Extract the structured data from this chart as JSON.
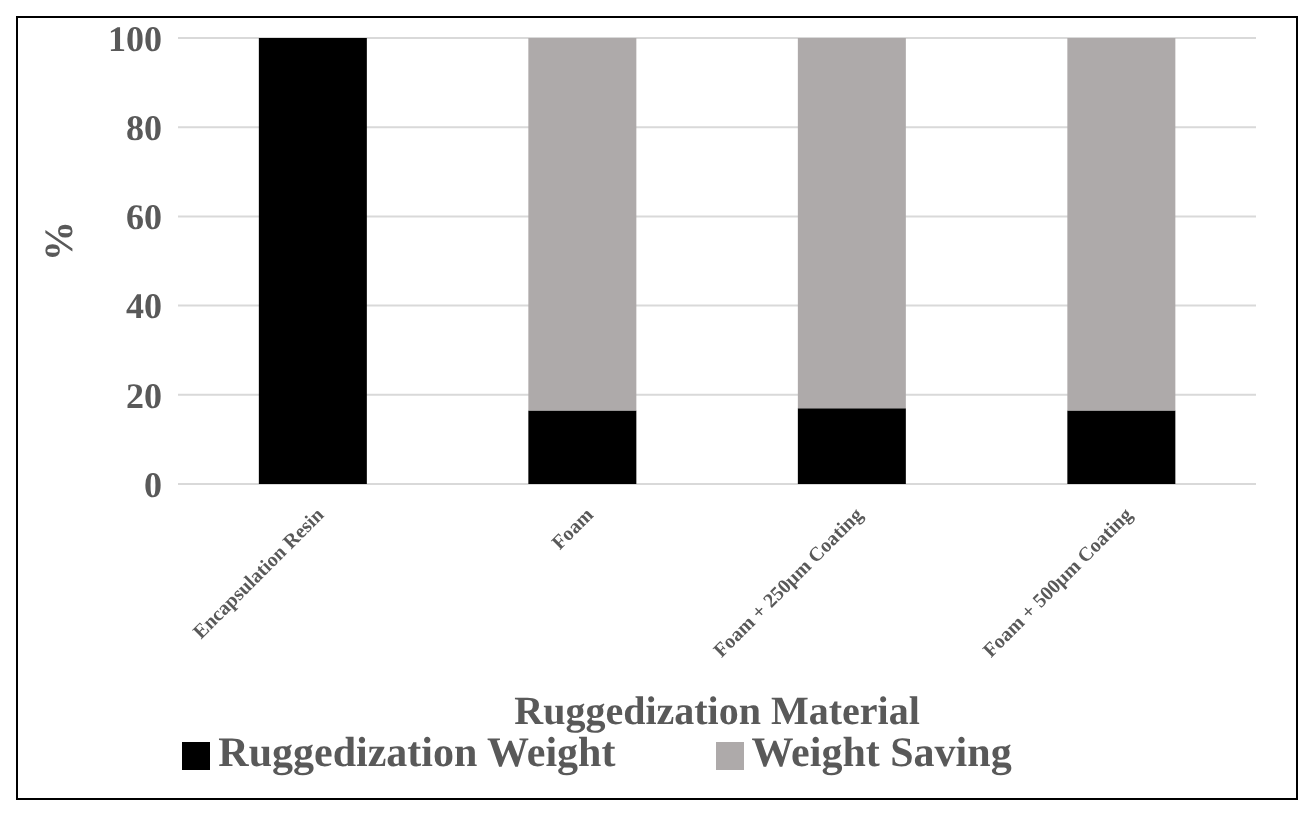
{
  "chart_data": {
    "type": "bar",
    "stacked": true,
    "xlabel": "Ruggedization Material",
    "ylabel": "%",
    "categories": [
      "Encapsulation Resin",
      "Foam",
      "Foam + 250µm Coating",
      "Foam + 500µm Coating"
    ],
    "series": [
      {
        "name": "Ruggedization Weight",
        "color": "#000000",
        "values": [
          100,
          16.5,
          17,
          16.5
        ]
      },
      {
        "name": "Weight Saving",
        "color": "#aeaaaa",
        "values": [
          0,
          83.5,
          83,
          83.5
        ]
      }
    ],
    "ylim": [
      0,
      100
    ],
    "yticks": [
      0,
      20,
      40,
      60,
      80,
      100
    ],
    "grid": "y",
    "legend": "bottom"
  }
}
